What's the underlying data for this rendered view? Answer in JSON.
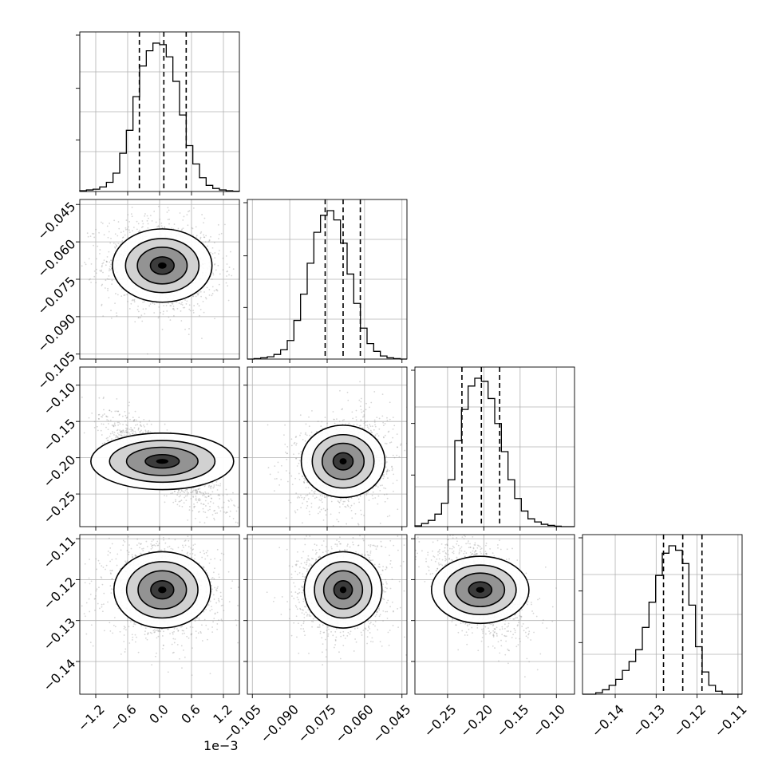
{
  "chart_data": {
    "type": "corner",
    "grid": true,
    "offset_text": "1e−3",
    "colors": {
      "line": "#000000",
      "grid": "#b0b0b0",
      "frame": "#000000",
      "bg": "#ffffff"
    },
    "params": [
      {
        "range": [
          -1.5,
          1.5
        ],
        "ticks": [
          -1.2,
          -0.6,
          0.0,
          0.6,
          1.2
        ],
        "tick_labels": [
          "−1.2",
          "−0.6",
          "0.0",
          "0.6",
          "1.2"
        ],
        "quantiles": [
          -0.38,
          0.08,
          0.5
        ],
        "contour_levels": [
          [
            -0.85,
            0.85
          ],
          [
            -0.55,
            0.55
          ],
          [
            -0.3,
            0.3
          ],
          [
            -0.1,
            0.1
          ]
        ],
        "hist": [
          0.005,
          0.01,
          0.015,
          0.03,
          0.06,
          0.12,
          0.25,
          0.4,
          0.62,
          0.82,
          0.92,
          0.97,
          0.96,
          0.88,
          0.72,
          0.5,
          0.3,
          0.18,
          0.09,
          0.04,
          0.02,
          0.01,
          0.005,
          0.002
        ]
      },
      {
        "range": [
          -0.107,
          -0.043
        ],
        "ticks": [
          -0.105,
          -0.09,
          -0.075,
          -0.06,
          -0.045
        ],
        "tick_labels": [
          "−0.105",
          "−0.090",
          "−0.075",
          "−0.060",
          "−0.045"
        ],
        "quantiles": [
          -0.0758,
          -0.0686,
          -0.0617
        ],
        "contour_levels": [],
        "hist": [
          0.0,
          0.003,
          0.008,
          0.015,
          0.03,
          0.06,
          0.12,
          0.25,
          0.42,
          0.62,
          0.82,
          0.93,
          0.96,
          0.9,
          0.75,
          0.55,
          0.36,
          0.2,
          0.1,
          0.05,
          0.02,
          0.008,
          0.003,
          0.0
        ]
      },
      {
        "range": [
          -0.295,
          -0.075
        ],
        "ticks": [
          -0.25,
          -0.2,
          -0.15,
          -0.1
        ],
        "tick_labels": [
          "−0.25",
          "−0.20",
          "−0.15",
          "−0.10"
        ],
        "quantiles": [
          -0.2302,
          -0.2034,
          -0.1782
        ],
        "contour_levels": [],
        "hist": [
          0.005,
          0.02,
          0.04,
          0.08,
          0.15,
          0.3,
          0.55,
          0.75,
          0.9,
          0.95,
          0.93,
          0.82,
          0.66,
          0.48,
          0.3,
          0.18,
          0.1,
          0.05,
          0.03,
          0.015,
          0.008,
          0.003,
          0.0,
          0.0
        ]
      },
      {
        "range": [
          -0.148,
          -0.109
        ],
        "ticks": [
          -0.14,
          -0.13,
          -0.12,
          -0.11
        ],
        "tick_labels": [
          "−0.14",
          "−0.13",
          "−0.12",
          "−0.11"
        ],
        "quantiles": [
          -0.1282,
          -0.1235,
          -0.1188
        ],
        "contour_levels": [],
        "hist": [
          0.0,
          0.0,
          0.01,
          0.03,
          0.06,
          0.1,
          0.16,
          0.22,
          0.3,
          0.45,
          0.62,
          0.8,
          0.95,
          1.0,
          0.97,
          0.88,
          0.6,
          0.32,
          0.15,
          0.06,
          0.02,
          0.0,
          0.0,
          0.0
        ]
      }
    ],
    "pairs": [
      {
        "x": 0,
        "y": 1,
        "center": [
          0.05,
          -0.0695
        ],
        "spread": [
          0.42,
          0.0072
        ],
        "corr": -0.1
      },
      {
        "x": 0,
        "y": 2,
        "center": [
          0.05,
          -0.205
        ],
        "spread": [
          0.42,
          0.025
        ],
        "corr": -0.82
      },
      {
        "x": 0,
        "y": 3,
        "center": [
          0.05,
          -0.1225
        ],
        "spread": [
          0.42,
          0.0045
        ],
        "corr": -0.05
      },
      {
        "x": 1,
        "y": 2,
        "center": [
          -0.0686,
          -0.205
        ],
        "spread": [
          0.0072,
          0.025
        ],
        "corr": 0.18
      },
      {
        "x": 1,
        "y": 3,
        "center": [
          -0.0686,
          -0.1225
        ],
        "spread": [
          0.0072,
          0.0045
        ],
        "corr": 0.05
      },
      {
        "x": 2,
        "y": 3,
        "center": [
          -0.205,
          -0.1225
        ],
        "spread": [
          0.025,
          0.0045
        ],
        "corr": -0.45
      }
    ]
  }
}
